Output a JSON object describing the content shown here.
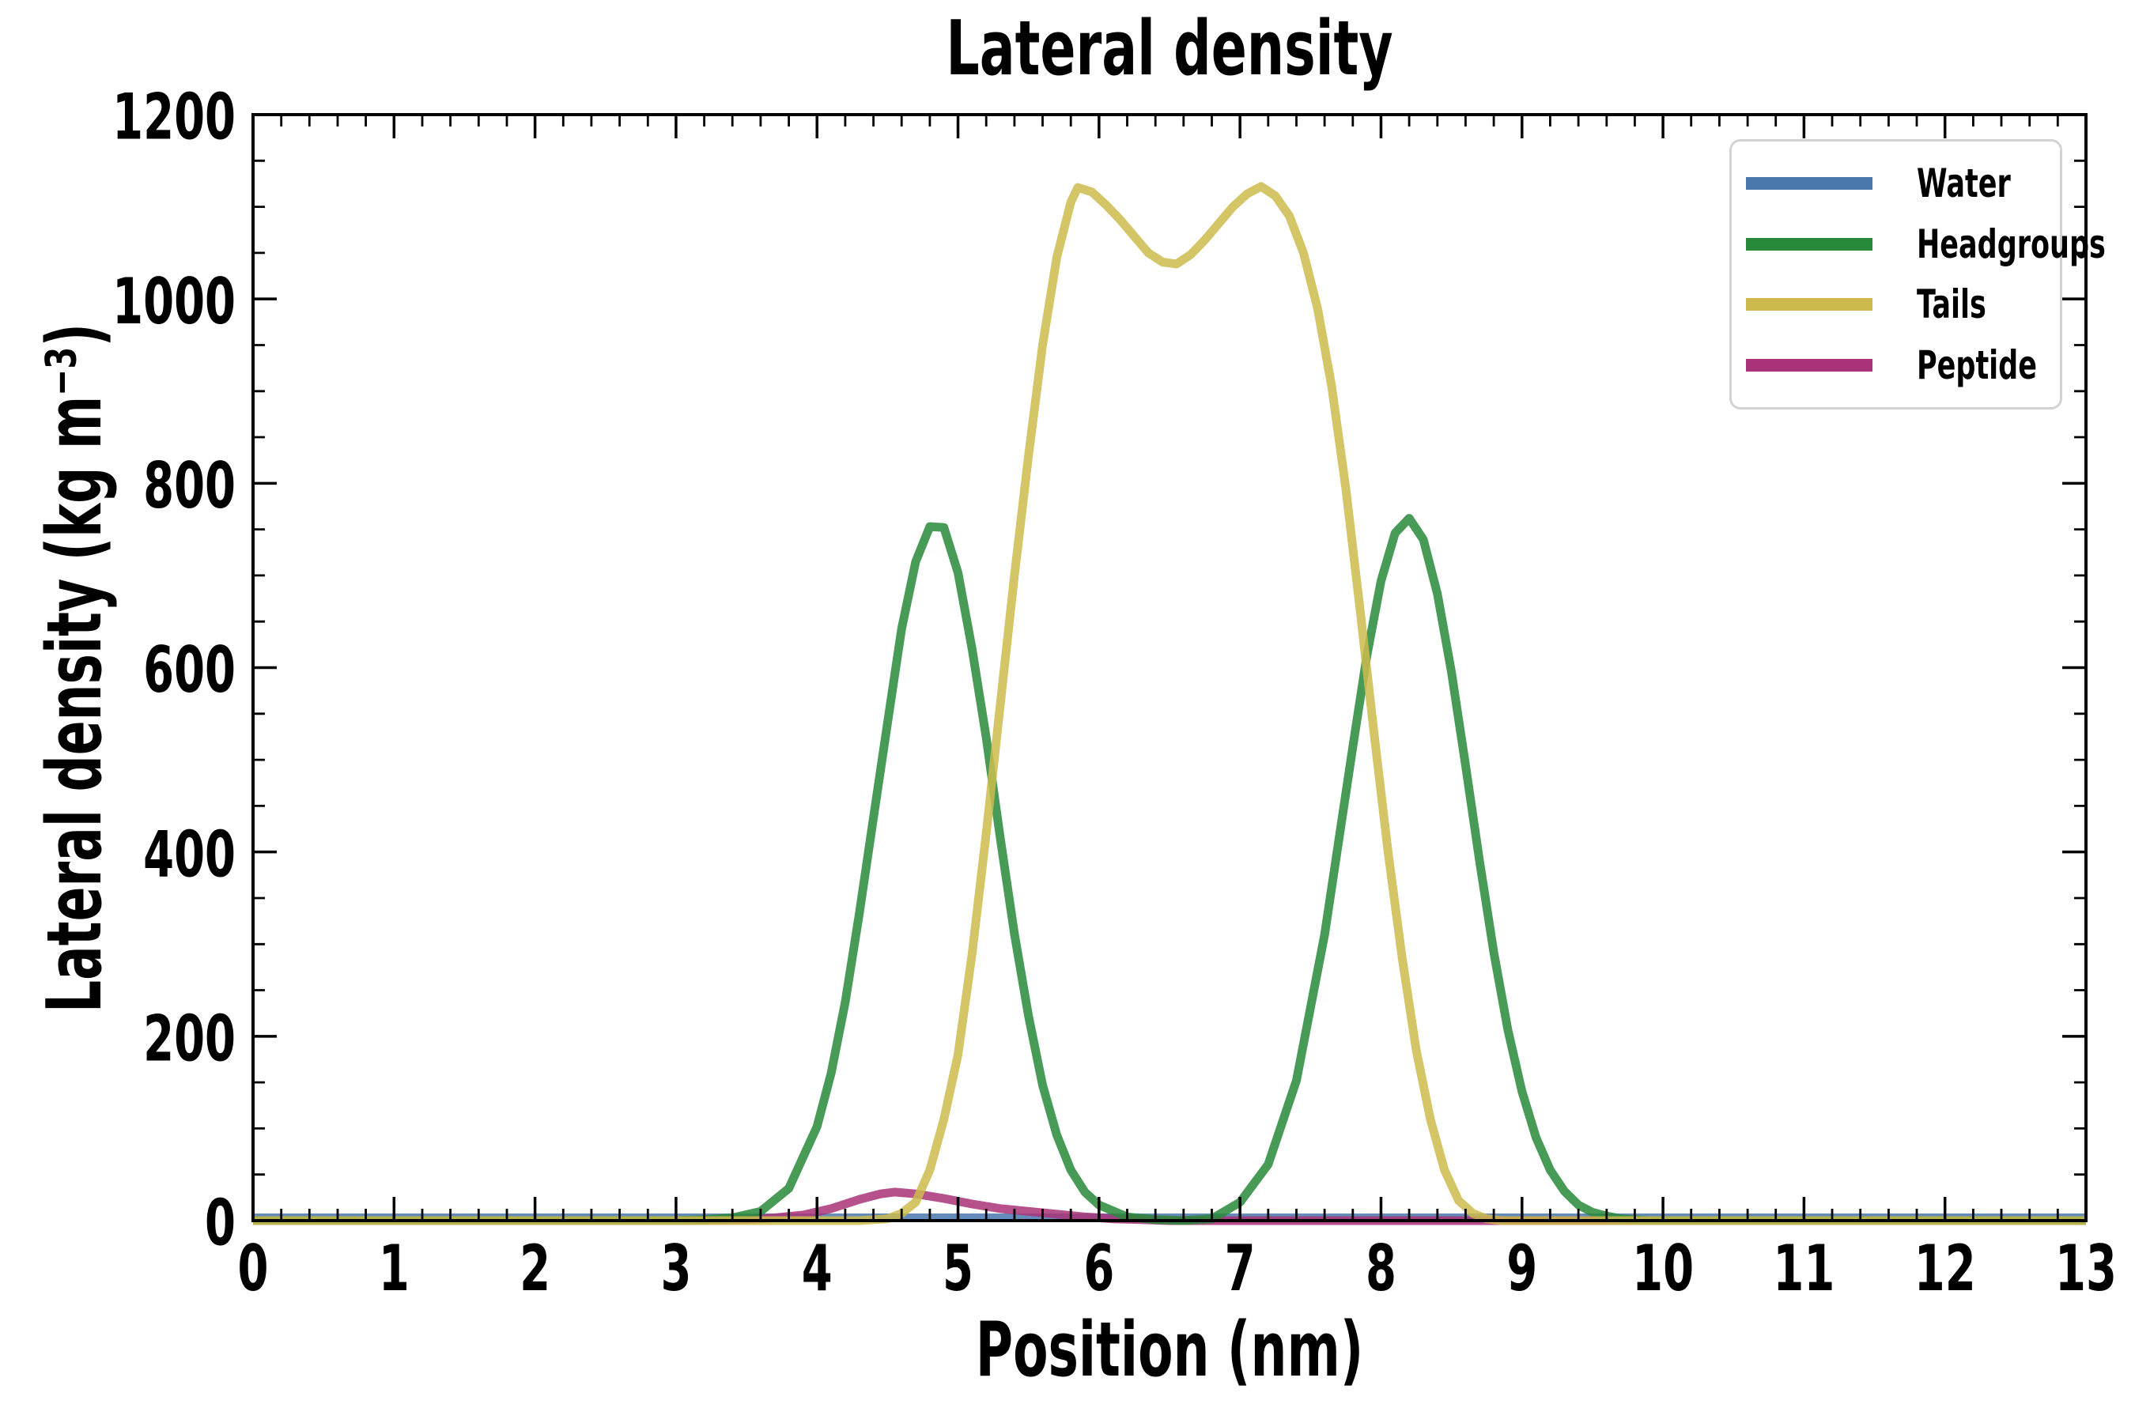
{
  "chart_data": {
    "type": "line",
    "title": "Lateral density",
    "xlabel": "Position (nm)",
    "ylabel": "Lateral density (kg m⁻³)",
    "xlim": [
      0,
      13
    ],
    "ylim": [
      0,
      1200
    ],
    "grid": false,
    "legend_position": "upper right",
    "x_tick_values": [
      0,
      1,
      2,
      3,
      4,
      5,
      6,
      7,
      8,
      9,
      10,
      11,
      12,
      13
    ],
    "x_tick_labels": [
      "0",
      "1",
      "2",
      "3",
      "4",
      "5",
      "6",
      "7",
      "8",
      "9",
      "10",
      "11",
      "12",
      "13"
    ],
    "x_minor_step": 0.2,
    "y_tick_values": [
      0,
      200,
      400,
      600,
      800,
      1000,
      1200
    ],
    "y_tick_labels": [
      "0",
      "200",
      "400",
      "600",
      "800",
      "1000",
      "1200"
    ],
    "y_minor_step": 50,
    "draw_order": [
      0,
      3,
      1,
      2
    ],
    "series": [
      {
        "name": "Water",
        "color": "#4878ae",
        "x": [
          0,
          13
        ],
        "y": [
          3,
          3
        ]
      },
      {
        "name": "Headgroups",
        "color": "#288a38",
        "x": [
          0,
          3.0,
          3.2,
          3.4,
          3.6,
          3.8,
          4.0,
          4.1,
          4.2,
          4.3,
          4.4,
          4.5,
          4.6,
          4.7,
          4.8,
          4.9,
          5.0,
          5.1,
          5.2,
          5.3,
          5.4,
          5.5,
          5.6,
          5.7,
          5.8,
          5.9,
          6.0,
          6.2,
          6.4,
          6.6,
          6.8,
          7.0,
          7.2,
          7.4,
          7.6,
          7.8,
          7.9,
          8.0,
          8.1,
          8.2,
          8.3,
          8.4,
          8.5,
          8.6,
          8.7,
          8.8,
          8.9,
          9.0,
          9.1,
          9.2,
          9.3,
          9.4,
          9.5,
          9.6,
          9.7,
          9.9,
          13
        ],
        "y": [
          0,
          0,
          1,
          3,
          10,
          35,
          102,
          160,
          237,
          333,
          437,
          540,
          642,
          715,
          753,
          752,
          703,
          620,
          524,
          415,
          311,
          222,
          147,
          93,
          55,
          31,
          17,
          4,
          1,
          0,
          2,
          20,
          61,
          152,
          310,
          514,
          613,
          694,
          746,
          762,
          739,
          680,
          595,
          494,
          389,
          291,
          207,
          140,
          90,
          55,
          32,
          17,
          9,
          5,
          2,
          0,
          0
        ]
      },
      {
        "name": "Tails",
        "color": "#ccbb4c",
        "x": [
          0,
          4.3,
          4.5,
          4.6,
          4.7,
          4.8,
          4.9,
          5.0,
          5.1,
          5.2,
          5.3,
          5.4,
          5.5,
          5.6,
          5.7,
          5.8,
          5.85,
          5.95,
          6.05,
          6.15,
          6.25,
          6.35,
          6.45,
          6.55,
          6.65,
          6.75,
          6.85,
          6.95,
          7.05,
          7.15,
          7.25,
          7.35,
          7.45,
          7.55,
          7.65,
          7.75,
          7.85,
          7.95,
          8.05,
          8.15,
          8.25,
          8.35,
          8.45,
          8.55,
          8.65,
          8.75,
          8.85,
          13
        ],
        "y": [
          0,
          0,
          2,
          8,
          20,
          55,
          110,
          180,
          290,
          420,
          560,
          700,
          830,
          950,
          1045,
          1105,
          1121,
          1116,
          1102,
          1086,
          1068,
          1050,
          1040,
          1038,
          1048,
          1064,
          1082,
          1100,
          1114,
          1122,
          1112,
          1090,
          1050,
          990,
          905,
          795,
          665,
          530,
          400,
          285,
          185,
          110,
          55,
          22,
          8,
          2,
          0,
          0
        ]
      },
      {
        "name": "Peptide",
        "color": "#a93378",
        "x": [
          0,
          3.0,
          3.3,
          3.5,
          3.7,
          3.9,
          4.1,
          4.3,
          4.45,
          4.55,
          4.7,
          4.9,
          5.1,
          5.3,
          5.5,
          5.7,
          5.9,
          6.1,
          6.3,
          6.5,
          13
        ],
        "y": [
          0,
          0,
          0.5,
          1,
          3,
          6,
          13,
          23,
          29,
          31,
          29,
          24,
          18,
          13,
          10,
          7,
          4,
          2,
          1,
          0,
          0
        ]
      }
    ]
  }
}
